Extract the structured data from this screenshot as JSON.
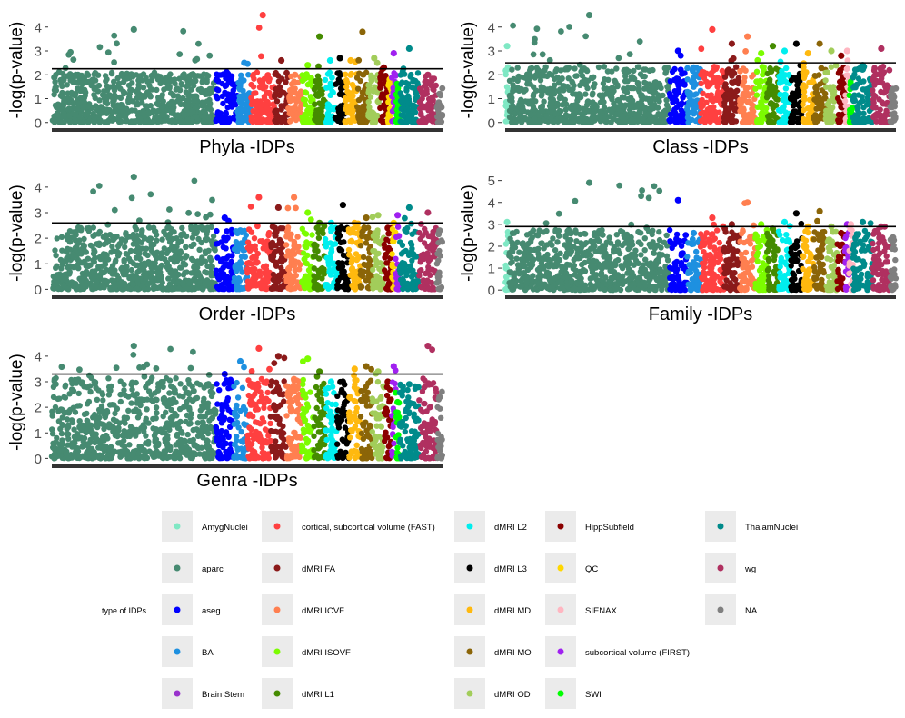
{
  "chart_data": [
    {
      "type": "scatter",
      "subtype": "manhattan",
      "xlabel": "Phyla -IDPs",
      "ylabel": "-log(p-value)",
      "yticks": [
        0,
        1,
        2,
        3,
        4
      ],
      "ylim": [
        -0.2,
        4.6
      ],
      "threshold": 2.25,
      "grid": false,
      "max": 4.5,
      "segments": [
        {
          "group": "aparc",
          "from": 0.0,
          "to": 0.42,
          "peak": 3.9
        },
        {
          "group": "aseg",
          "from": 0.42,
          "to": 0.475,
          "peak": 2.1
        },
        {
          "group": "BA",
          "from": 0.475,
          "to": 0.51,
          "peak": 2.5
        },
        {
          "group": "cortical, subcortical volume (FAST)",
          "from": 0.51,
          "to": 0.57,
          "peak": 4.5
        },
        {
          "group": "dMRI FA",
          "from": 0.57,
          "to": 0.605,
          "peak": 2.6
        },
        {
          "group": "dMRI ICVF",
          "from": 0.605,
          "to": 0.64,
          "peak": 2.0
        },
        {
          "group": "dMRI ISOVF",
          "from": 0.64,
          "to": 0.67,
          "peak": 2.4
        },
        {
          "group": "dMRI L1",
          "from": 0.67,
          "to": 0.7,
          "peak": 3.6
        },
        {
          "group": "dMRI L2",
          "from": 0.7,
          "to": 0.725,
          "peak": 2.6
        },
        {
          "group": "dMRI L3",
          "from": 0.725,
          "to": 0.75,
          "peak": 2.7
        },
        {
          "group": "dMRI MD",
          "from": 0.75,
          "to": 0.78,
          "peak": 2.6
        },
        {
          "group": "dMRI MO",
          "from": 0.78,
          "to": 0.81,
          "peak": 3.8
        },
        {
          "group": "dMRI OD",
          "from": 0.81,
          "to": 0.84,
          "peak": 2.7
        },
        {
          "group": "HippSubfield",
          "from": 0.84,
          "to": 0.86,
          "peak": 2.3
        },
        {
          "group": "QC",
          "from": 0.86,
          "to": 0.87,
          "peak": 1.8
        },
        {
          "group": "subcortical volume (FIRST)",
          "from": 0.87,
          "to": 0.88,
          "peak": 2.9
        },
        {
          "group": "SWI",
          "from": 0.88,
          "to": 0.89,
          "peak": 1.6
        },
        {
          "group": "ThalamNuclei",
          "from": 0.89,
          "to": 0.94,
          "peak": 3.1
        },
        {
          "group": "wg",
          "from": 0.94,
          "to": 0.985,
          "peak": 2.0
        },
        {
          "group": "NA",
          "from": 0.985,
          "to": 1.0,
          "peak": 1.2
        }
      ]
    },
    {
      "type": "scatter",
      "subtype": "manhattan",
      "xlabel": "Class -IDPs",
      "ylabel": "-log(p-value)",
      "yticks": [
        0,
        1,
        2,
        3,
        4
      ],
      "ylim": [
        -0.2,
        4.6
      ],
      "threshold": 2.5,
      "grid": false,
      "max": 4.5,
      "segments": [
        {
          "group": "AmygNuclei",
          "from": 0.0,
          "to": 0.01,
          "peak": 3.2
        },
        {
          "group": "aparc",
          "from": 0.01,
          "to": 0.42,
          "peak": 4.5
        },
        {
          "group": "aseg",
          "from": 0.42,
          "to": 0.465,
          "peak": 3.0
        },
        {
          "group": "BA",
          "from": 0.465,
          "to": 0.5,
          "peak": 2.3
        },
        {
          "group": "cortical, subcortical volume (FAST)",
          "from": 0.5,
          "to": 0.56,
          "peak": 3.9
        },
        {
          "group": "dMRI FA",
          "from": 0.56,
          "to": 0.6,
          "peak": 3.3
        },
        {
          "group": "dMRI ICVF",
          "from": 0.6,
          "to": 0.64,
          "peak": 3.6
        },
        {
          "group": "dMRI ISOVF",
          "from": 0.64,
          "to": 0.67,
          "peak": 2.9
        },
        {
          "group": "dMRI L1",
          "from": 0.67,
          "to": 0.7,
          "peak": 3.2
        },
        {
          "group": "dMRI L2",
          "from": 0.7,
          "to": 0.73,
          "peak": 3.0
        },
        {
          "group": "dMRI L3",
          "from": 0.73,
          "to": 0.76,
          "peak": 3.3
        },
        {
          "group": "dMRI MD",
          "from": 0.76,
          "to": 0.79,
          "peak": 2.9
        },
        {
          "group": "dMRI MO",
          "from": 0.79,
          "to": 0.82,
          "peak": 3.3
        },
        {
          "group": "dMRI OD",
          "from": 0.82,
          "to": 0.85,
          "peak": 3.0
        },
        {
          "group": "HippSubfield",
          "from": 0.85,
          "to": 0.87,
          "peak": 2.8
        },
        {
          "group": "SIENAX",
          "from": 0.87,
          "to": 0.88,
          "peak": 3.0
        },
        {
          "group": "SWI",
          "from": 0.88,
          "to": 0.89,
          "peak": 1.6
        },
        {
          "group": "ThalamNuclei",
          "from": 0.89,
          "to": 0.94,
          "peak": 2.4
        },
        {
          "group": "wg",
          "from": 0.94,
          "to": 0.985,
          "peak": 3.1
        },
        {
          "group": "NA",
          "from": 0.985,
          "to": 1.0,
          "peak": 1.4
        }
      ]
    },
    {
      "type": "scatter",
      "subtype": "manhattan",
      "xlabel": "Order -IDPs",
      "ylabel": "-log(p-value)",
      "yticks": [
        0,
        1,
        2,
        3,
        4
      ],
      "ylim": [
        -0.2,
        4.6
      ],
      "threshold": 2.6,
      "grid": false,
      "max": 4.5,
      "segments": [
        {
          "group": "aparc",
          "from": 0.0,
          "to": 0.42,
          "peak": 4.4
        },
        {
          "group": "aseg",
          "from": 0.42,
          "to": 0.465,
          "peak": 2.8
        },
        {
          "group": "BA",
          "from": 0.465,
          "to": 0.5,
          "peak": 2.3
        },
        {
          "group": "cortical, subcortical volume (FAST)",
          "from": 0.5,
          "to": 0.56,
          "peak": 3.6
        },
        {
          "group": "dMRI FA",
          "from": 0.56,
          "to": 0.6,
          "peak": 3.2
        },
        {
          "group": "dMRI ICVF",
          "from": 0.6,
          "to": 0.64,
          "peak": 3.6
        },
        {
          "group": "dMRI ISOVF",
          "from": 0.64,
          "to": 0.67,
          "peak": 3.0
        },
        {
          "group": "dMRI L1",
          "from": 0.67,
          "to": 0.7,
          "peak": 2.6
        },
        {
          "group": "dMRI L2",
          "from": 0.7,
          "to": 0.73,
          "peak": 2.6
        },
        {
          "group": "dMRI L3",
          "from": 0.73,
          "to": 0.76,
          "peak": 3.3
        },
        {
          "group": "dMRI MD",
          "from": 0.76,
          "to": 0.79,
          "peak": 2.6
        },
        {
          "group": "dMRI MO",
          "from": 0.79,
          "to": 0.82,
          "peak": 2.8
        },
        {
          "group": "dMRI OD",
          "from": 0.82,
          "to": 0.85,
          "peak": 2.9
        },
        {
          "group": "HippSubfield",
          "from": 0.85,
          "to": 0.87,
          "peak": 2.4
        },
        {
          "group": "QC",
          "from": 0.87,
          "to": 0.88,
          "peak": 2.6
        },
        {
          "group": "subcortical volume (FIRST)",
          "from": 0.88,
          "to": 0.89,
          "peak": 2.9
        },
        {
          "group": "ThalamNuclei",
          "from": 0.89,
          "to": 0.94,
          "peak": 3.2
        },
        {
          "group": "wg",
          "from": 0.94,
          "to": 0.985,
          "peak": 3.0
        },
        {
          "group": "NA",
          "from": 0.985,
          "to": 1.0,
          "peak": 2.3
        }
      ]
    },
    {
      "type": "scatter",
      "subtype": "manhattan",
      "xlabel": "Family -IDPs",
      "ylabel": "-log(p-value)",
      "yticks": [
        0,
        1,
        2,
        3,
        4,
        5
      ],
      "ylim": [
        -0.2,
        5.4
      ],
      "threshold": 2.9,
      "grid": false,
      "max": 5.0,
      "segments": [
        {
          "group": "AmygNuclei",
          "from": 0.0,
          "to": 0.01,
          "peak": 3.1
        },
        {
          "group": "aparc",
          "from": 0.01,
          "to": 0.42,
          "peak": 4.9
        },
        {
          "group": "aseg",
          "from": 0.42,
          "to": 0.465,
          "peak": 4.1
        },
        {
          "group": "BA",
          "from": 0.465,
          "to": 0.5,
          "peak": 2.6
        },
        {
          "group": "cortical, subcortical volume (FAST)",
          "from": 0.5,
          "to": 0.56,
          "peak": 3.3
        },
        {
          "group": "dMRI FA",
          "from": 0.56,
          "to": 0.6,
          "peak": 3.0
        },
        {
          "group": "dMRI ICVF",
          "from": 0.6,
          "to": 0.64,
          "peak": 4.0
        },
        {
          "group": "dMRI ISOVF",
          "from": 0.64,
          "to": 0.67,
          "peak": 3.0
        },
        {
          "group": "dMRI L1",
          "from": 0.67,
          "to": 0.7,
          "peak": 2.8
        },
        {
          "group": "dMRI L2",
          "from": 0.7,
          "to": 0.73,
          "peak": 3.1
        },
        {
          "group": "dMRI L3",
          "from": 0.73,
          "to": 0.76,
          "peak": 3.5
        },
        {
          "group": "dMRI MD",
          "from": 0.76,
          "to": 0.79,
          "peak": 2.9
        },
        {
          "group": "dMRI MO",
          "from": 0.79,
          "to": 0.82,
          "peak": 3.6
        },
        {
          "group": "dMRI OD",
          "from": 0.82,
          "to": 0.85,
          "peak": 2.9
        },
        {
          "group": "HippSubfield",
          "from": 0.85,
          "to": 0.87,
          "peak": 2.6
        },
        {
          "group": "subcortical volume (FIRST)",
          "from": 0.87,
          "to": 0.88,
          "peak": 3.0
        },
        {
          "group": "SIENAX",
          "from": 0.88,
          "to": 0.89,
          "peak": 3.0
        },
        {
          "group": "ThalamNuclei",
          "from": 0.89,
          "to": 0.94,
          "peak": 3.1
        },
        {
          "group": "wg",
          "from": 0.94,
          "to": 0.985,
          "peak": 2.9
        },
        {
          "group": "NA",
          "from": 0.985,
          "to": 1.0,
          "peak": 2.4
        }
      ]
    },
    {
      "type": "scatter",
      "subtype": "manhattan",
      "xlabel": "Genra -IDPs",
      "ylabel": "-log(p-value)",
      "yticks": [
        0,
        1,
        2,
        3,
        4
      ],
      "ylim": [
        -0.2,
        4.6
      ],
      "threshold": 3.3,
      "grid": false,
      "max": 4.4,
      "segments": [
        {
          "group": "aparc",
          "from": 0.0,
          "to": 0.42,
          "peak": 4.4
        },
        {
          "group": "aseg",
          "from": 0.42,
          "to": 0.465,
          "peak": 3.3
        },
        {
          "group": "BA",
          "from": 0.465,
          "to": 0.5,
          "peak": 3.8
        },
        {
          "group": "cortical, subcortical volume (FAST)",
          "from": 0.5,
          "to": 0.56,
          "peak": 4.3
        },
        {
          "group": "dMRI FA",
          "from": 0.56,
          "to": 0.6,
          "peak": 4.0
        },
        {
          "group": "dMRI ICVF",
          "from": 0.6,
          "to": 0.64,
          "peak": 3.1
        },
        {
          "group": "dMRI ISOVF",
          "from": 0.64,
          "to": 0.67,
          "peak": 3.9
        },
        {
          "group": "dMRI L1",
          "from": 0.67,
          "to": 0.7,
          "peak": 3.4
        },
        {
          "group": "dMRI L2",
          "from": 0.7,
          "to": 0.73,
          "peak": 3.0
        },
        {
          "group": "dMRI L3",
          "from": 0.73,
          "to": 0.76,
          "peak": 3.0
        },
        {
          "group": "dMRI MD",
          "from": 0.76,
          "to": 0.79,
          "peak": 3.5
        },
        {
          "group": "dMRI MO",
          "from": 0.79,
          "to": 0.82,
          "peak": 3.6
        },
        {
          "group": "dMRI OD",
          "from": 0.82,
          "to": 0.85,
          "peak": 3.4
        },
        {
          "group": "HippSubfield",
          "from": 0.85,
          "to": 0.87,
          "peak": 3.0
        },
        {
          "group": "subcortical volume (FIRST)",
          "from": 0.87,
          "to": 0.88,
          "peak": 3.6
        },
        {
          "group": "SWI",
          "from": 0.88,
          "to": 0.89,
          "peak": 2.2
        },
        {
          "group": "ThalamNuclei",
          "from": 0.89,
          "to": 0.94,
          "peak": 2.9
        },
        {
          "group": "wg",
          "from": 0.94,
          "to": 0.985,
          "peak": 4.4
        },
        {
          "group": "NA",
          "from": 0.985,
          "to": 1.0,
          "peak": 2.4
        }
      ]
    }
  ],
  "legend": {
    "title": "type of IDPs",
    "items": [
      {
        "label": "AmygNuclei",
        "color": "#7fe8c4"
      },
      {
        "label": "aparc",
        "color": "#468a71"
      },
      {
        "label": "aseg",
        "color": "#0000ff"
      },
      {
        "label": "BA",
        "color": "#1e90e0"
      },
      {
        "label": "Brain Stem",
        "color": "#9932cc"
      },
      {
        "label": "cortical, subcortical volume (FAST)",
        "color": "#ff4040"
      },
      {
        "label": "dMRI FA",
        "color": "#8b1a1a"
      },
      {
        "label": "dMRI ICVF",
        "color": "#ff7f50"
      },
      {
        "label": "dMRI ISOVF",
        "color": "#7cfc00"
      },
      {
        "label": "dMRI L1",
        "color": "#458b00"
      },
      {
        "label": "dMRI L2",
        "color": "#00eeee"
      },
      {
        "label": "dMRI L3",
        "color": "#000000"
      },
      {
        "label": "dMRI MD",
        "color": "#ffb90f"
      },
      {
        "label": "dMRI MO",
        "color": "#8b6508"
      },
      {
        "label": "dMRI OD",
        "color": "#a2cd5a"
      },
      {
        "label": "HippSubfield",
        "color": "#8b0000"
      },
      {
        "label": "QC",
        "color": "#ffd700"
      },
      {
        "label": "SIENAX",
        "color": "#ffb6c1"
      },
      {
        "label": "subcortical volume (FIRST)",
        "color": "#a020f0"
      },
      {
        "label": "SWI",
        "color": "#00ff00"
      },
      {
        "label": "ThalamNuclei",
        "color": "#008b8b"
      },
      {
        "label": "wg",
        "color": "#b03060"
      },
      {
        "label": "NA",
        "color": "#7f7f7f"
      }
    ]
  }
}
